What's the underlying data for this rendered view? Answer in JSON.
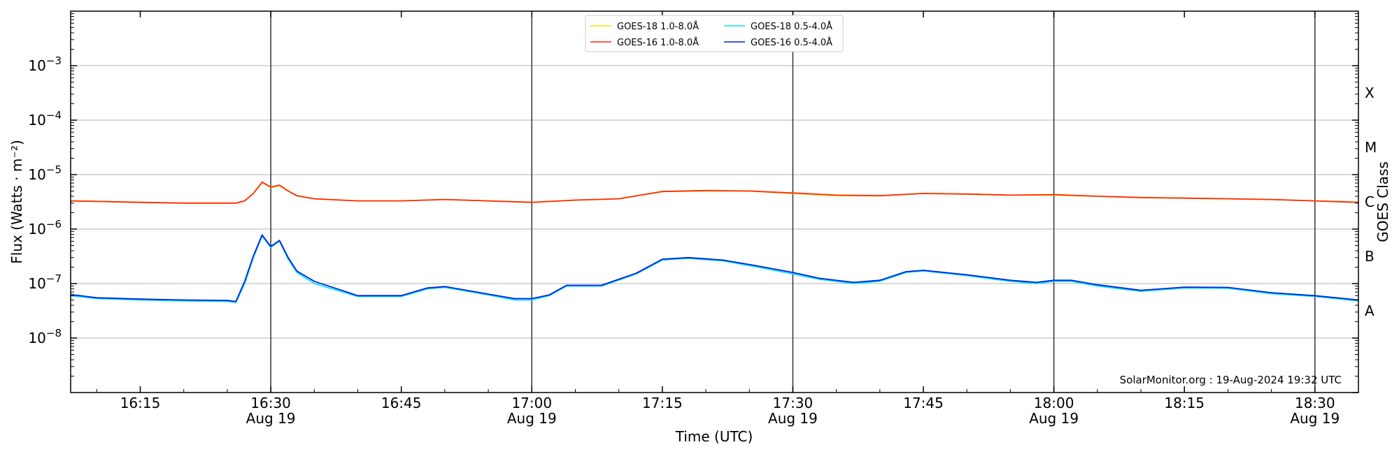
{
  "chart_data": {
    "type": "line",
    "title": "",
    "xlabel": "Time (UTC)",
    "ylabel": "Flux (Watts · m⁻²)",
    "ylabel_right": "GOES Class",
    "y_scale": "log",
    "ylim": [
      1e-09,
      0.01
    ],
    "xlim": [
      "16:07",
      "18:35"
    ],
    "grid": {
      "horizontal": true,
      "vertical": false
    },
    "y_ticks": [
      {
        "value": 1e-08,
        "base": "10",
        "exp": "−8"
      },
      {
        "value": 1e-07,
        "base": "10",
        "exp": "−7"
      },
      {
        "value": 1e-06,
        "base": "10",
        "exp": "−6"
      },
      {
        "value": 1e-05,
        "base": "10",
        "exp": "−5"
      },
      {
        "value": 0.0001,
        "base": "10",
        "exp": "−4"
      },
      {
        "value": 0.001,
        "base": "10",
        "exp": "−3"
      }
    ],
    "x_ticks": [
      {
        "time": "16:15",
        "label": "16:15",
        "sublabel": ""
      },
      {
        "time": "16:30",
        "label": "16:30",
        "sublabel": "Aug 19"
      },
      {
        "time": "16:45",
        "label": "16:45",
        "sublabel": ""
      },
      {
        "time": "17:00",
        "label": "17:00",
        "sublabel": "Aug 19"
      },
      {
        "time": "17:15",
        "label": "17:15",
        "sublabel": ""
      },
      {
        "time": "17:30",
        "label": "17:30",
        "sublabel": "Aug 19"
      },
      {
        "time": "17:45",
        "label": "17:45",
        "sublabel": ""
      },
      {
        "time": "18:00",
        "label": "18:00",
        "sublabel": "Aug 19"
      },
      {
        "time": "18:15",
        "label": "18:15",
        "sublabel": ""
      },
      {
        "time": "18:30",
        "label": "18:30",
        "sublabel": "Aug 19"
      }
    ],
    "vertical_markers": [
      "16:30",
      "17:00",
      "17:30",
      "18:00",
      "18:30"
    ],
    "goes_classes": [
      {
        "label": "A",
        "flux": 1e-08
      },
      {
        "label": "B",
        "flux": 1e-07
      },
      {
        "label": "C",
        "flux": 1e-06
      },
      {
        "label": "M",
        "flux": 1e-05
      },
      {
        "label": "X",
        "flux": 0.0001
      }
    ],
    "legend": {
      "placement": "top-center",
      "columns": 2
    },
    "annotation": "SolarMonitor.org : 19-Aug-2024 19:32 UTC",
    "series": [
      {
        "name": "GOES-18 1.0-8.0Å",
        "color": "#ffd700",
        "points": [
          [
            "16:07",
            3.3e-06
          ],
          [
            "16:15",
            3.1e-06
          ],
          [
            "16:20",
            3e-06
          ],
          [
            "16:26",
            3e-06
          ],
          [
            "16:27",
            3.3e-06
          ],
          [
            "16:28",
            4.5e-06
          ],
          [
            "16:29",
            7.2e-06
          ],
          [
            "16:30",
            5.8e-06
          ],
          [
            "16:31",
            6.3e-06
          ],
          [
            "16:32",
            5e-06
          ],
          [
            "16:33",
            4.1e-06
          ],
          [
            "16:35",
            3.6e-06
          ],
          [
            "16:40",
            3.3e-06
          ],
          [
            "16:45",
            3.3e-06
          ],
          [
            "16:50",
            3.5e-06
          ],
          [
            "16:55",
            3.3e-06
          ],
          [
            "17:00",
            3.1e-06
          ],
          [
            "17:05",
            3.4e-06
          ],
          [
            "17:10",
            3.6e-06
          ],
          [
            "17:15",
            4.9e-06
          ],
          [
            "17:20",
            5e-06
          ],
          [
            "17:25",
            5e-06
          ],
          [
            "17:30",
            4.5e-06
          ],
          [
            "17:35",
            4.1e-06
          ],
          [
            "17:40",
            4.1e-06
          ],
          [
            "17:45",
            4.5e-06
          ],
          [
            "17:50",
            4.4e-06
          ],
          [
            "17:55",
            4.2e-06
          ],
          [
            "18:00",
            4.2e-06
          ],
          [
            "18:05",
            4e-06
          ],
          [
            "18:10",
            3.8e-06
          ],
          [
            "18:15",
            3.7e-06
          ],
          [
            "18:20",
            3.6e-06
          ],
          [
            "18:25",
            3.5e-06
          ],
          [
            "18:30",
            3.3e-06
          ],
          [
            "18:35",
            3.1e-06
          ]
        ]
      },
      {
        "name": "GOES-16 1.0-8.0Å",
        "color": "#ff2a00",
        "points": [
          [
            "16:07",
            3.3e-06
          ],
          [
            "16:15",
            3.1e-06
          ],
          [
            "16:20",
            3e-06
          ],
          [
            "16:26",
            3e-06
          ],
          [
            "16:27",
            3.3e-06
          ],
          [
            "16:28",
            4.5e-06
          ],
          [
            "16:29",
            7.3e-06
          ],
          [
            "16:30",
            5.9e-06
          ],
          [
            "16:31",
            6.4e-06
          ],
          [
            "16:32",
            5e-06
          ],
          [
            "16:33",
            4.1e-06
          ],
          [
            "16:35",
            3.6e-06
          ],
          [
            "16:40",
            3.3e-06
          ],
          [
            "16:45",
            3.3e-06
          ],
          [
            "16:50",
            3.5e-06
          ],
          [
            "16:55",
            3.3e-06
          ],
          [
            "17:00",
            3.1e-06
          ],
          [
            "17:05",
            3.4e-06
          ],
          [
            "17:10",
            3.6e-06
          ],
          [
            "17:15",
            4.9e-06
          ],
          [
            "17:20",
            5.1e-06
          ],
          [
            "17:25",
            5e-06
          ],
          [
            "17:30",
            4.6e-06
          ],
          [
            "17:35",
            4.2e-06
          ],
          [
            "17:40",
            4.1e-06
          ],
          [
            "17:45",
            4.5e-06
          ],
          [
            "17:50",
            4.4e-06
          ],
          [
            "17:55",
            4.2e-06
          ],
          [
            "18:00",
            4.3e-06
          ],
          [
            "18:05",
            4e-06
          ],
          [
            "18:10",
            3.8e-06
          ],
          [
            "18:15",
            3.7e-06
          ],
          [
            "18:20",
            3.6e-06
          ],
          [
            "18:25",
            3.5e-06
          ],
          [
            "18:30",
            3.3e-06
          ],
          [
            "18:35",
            3.1e-06
          ]
        ]
      },
      {
        "name": "GOES-18 0.5-4.0Å",
        "color": "#00e5ff",
        "points": [
          [
            "16:07",
            6e-08
          ],
          [
            "16:10",
            5.3e-08
          ],
          [
            "16:15",
            5e-08
          ],
          [
            "16:20",
            4.8e-08
          ],
          [
            "16:25",
            4.7e-08
          ],
          [
            "16:26",
            4.5e-08
          ],
          [
            "16:27",
            1e-07
          ],
          [
            "16:28",
            3e-07
          ],
          [
            "16:29",
            7.5e-07
          ],
          [
            "16:30",
            4.6e-07
          ],
          [
            "16:31",
            6e-07
          ],
          [
            "16:32",
            2.8e-07
          ],
          [
            "16:33",
            1.6e-07
          ],
          [
            "16:35",
            1e-07
          ],
          [
            "16:40",
            5.8e-08
          ],
          [
            "16:45",
            5.8e-08
          ],
          [
            "16:48",
            8e-08
          ],
          [
            "16:50",
            8.5e-08
          ],
          [
            "16:55",
            6.2e-08
          ],
          [
            "16:58",
            5e-08
          ],
          [
            "17:00",
            5e-08
          ],
          [
            "17:02",
            6e-08
          ],
          [
            "17:04",
            9e-08
          ],
          [
            "17:08",
            9e-08
          ],
          [
            "17:12",
            1.5e-07
          ],
          [
            "17:15",
            2.7e-07
          ],
          [
            "17:18",
            2.9e-07
          ],
          [
            "17:22",
            2.6e-07
          ],
          [
            "17:26",
            2e-07
          ],
          [
            "17:30",
            1.5e-07
          ],
          [
            "17:33",
            1.2e-07
          ],
          [
            "17:37",
            1e-07
          ],
          [
            "17:40",
            1.1e-07
          ],
          [
            "17:43",
            1.6e-07
          ],
          [
            "17:45",
            1.7e-07
          ],
          [
            "17:50",
            1.4e-07
          ],
          [
            "17:55",
            1.1e-07
          ],
          [
            "17:58",
            1e-07
          ],
          [
            "18:00",
            1.1e-07
          ],
          [
            "18:02",
            1.1e-07
          ],
          [
            "18:05",
            9e-08
          ],
          [
            "18:10",
            7.2e-08
          ],
          [
            "18:15",
            8.3e-08
          ],
          [
            "18:20",
            8.2e-08
          ],
          [
            "18:25",
            6.5e-08
          ],
          [
            "18:30",
            5.8e-08
          ],
          [
            "18:35",
            4.8e-08
          ]
        ]
      },
      {
        "name": "GOES-16 0.5-4.0Å",
        "color": "#0022dd",
        "points": [
          [
            "16:07",
            6.3e-08
          ],
          [
            "16:10",
            5.5e-08
          ],
          [
            "16:15",
            5.2e-08
          ],
          [
            "16:20",
            5e-08
          ],
          [
            "16:25",
            4.9e-08
          ],
          [
            "16:26",
            4.7e-08
          ],
          [
            "16:27",
            1.1e-07
          ],
          [
            "16:28",
            3.2e-07
          ],
          [
            "16:29",
            7.8e-07
          ],
          [
            "16:30",
            4.8e-07
          ],
          [
            "16:31",
            6.2e-07
          ],
          [
            "16:32",
            3e-07
          ],
          [
            "16:33",
            1.7e-07
          ],
          [
            "16:35",
            1.1e-07
          ],
          [
            "16:40",
            6e-08
          ],
          [
            "16:45",
            6e-08
          ],
          [
            "16:48",
            8.3e-08
          ],
          [
            "16:50",
            8.8e-08
          ],
          [
            "16:55",
            6.4e-08
          ],
          [
            "16:58",
            5.3e-08
          ],
          [
            "17:00",
            5.3e-08
          ],
          [
            "17:02",
            6.2e-08
          ],
          [
            "17:04",
            9.3e-08
          ],
          [
            "17:08",
            9.3e-08
          ],
          [
            "17:12",
            1.55e-07
          ],
          [
            "17:15",
            2.8e-07
          ],
          [
            "17:18",
            3e-07
          ],
          [
            "17:22",
            2.7e-07
          ],
          [
            "17:26",
            2.1e-07
          ],
          [
            "17:30",
            1.6e-07
          ],
          [
            "17:33",
            1.25e-07
          ],
          [
            "17:37",
            1.05e-07
          ],
          [
            "17:40",
            1.15e-07
          ],
          [
            "17:43",
            1.65e-07
          ],
          [
            "17:45",
            1.75e-07
          ],
          [
            "17:50",
            1.45e-07
          ],
          [
            "17:55",
            1.15e-07
          ],
          [
            "17:58",
            1.05e-07
          ],
          [
            "18:00",
            1.15e-07
          ],
          [
            "18:02",
            1.15e-07
          ],
          [
            "18:05",
            9.5e-08
          ],
          [
            "18:10",
            7.5e-08
          ],
          [
            "18:15",
            8.6e-08
          ],
          [
            "18:20",
            8.5e-08
          ],
          [
            "18:25",
            6.8e-08
          ],
          [
            "18:30",
            6e-08
          ],
          [
            "18:35",
            5e-08
          ]
        ]
      }
    ]
  }
}
